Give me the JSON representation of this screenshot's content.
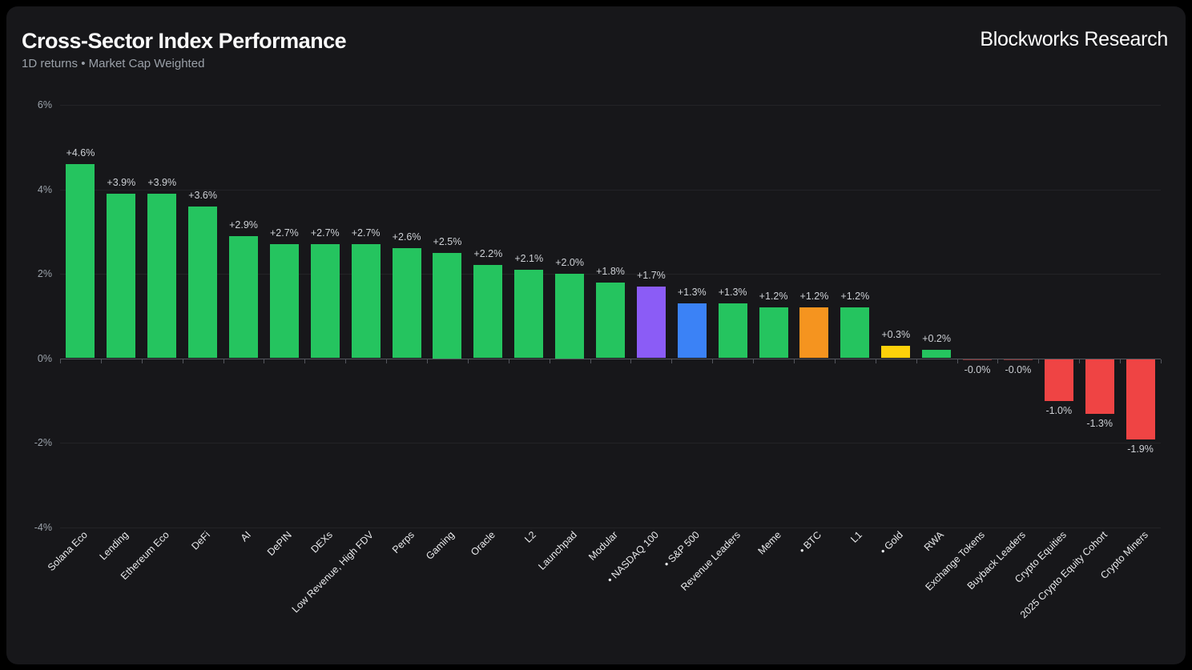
{
  "header": {
    "title": "Cross-Sector Index Performance",
    "subtitle": "1D returns • Market Cap Weighted",
    "brand": "Blockworks Research"
  },
  "chart_data": {
    "type": "bar",
    "title": "Cross-Sector Index Performance",
    "subtitle": "1D returns • Market Cap Weighted",
    "xlabel": "",
    "ylabel": "",
    "ylim": [
      -4,
      6
    ],
    "grid": "horizontal",
    "legend": "none",
    "yticks": [
      6,
      4,
      2,
      0,
      -2,
      -4
    ],
    "ytick_labels": [
      "6%",
      "4%",
      "2%",
      "0%",
      "-2%",
      "-4%"
    ],
    "categories": [
      "Solana Eco",
      "Lending",
      "Ethereum Eco",
      "DeFi",
      "AI",
      "DePIN",
      "DEXs",
      "Low Revenue, High FDV",
      "Perps",
      "Gaming",
      "Oracle",
      "L2",
      "Launchpad",
      "Modular",
      "• NASDAQ 100",
      "• S&P 500",
      "Revenue Leaders",
      "Meme",
      "• BTC",
      "L1",
      "• Gold",
      "RWA",
      "Exchange Tokens",
      "Buyback Leaders",
      "Crypto Equities",
      "2025 Crypto Equity Cohort",
      "Crypto Miners"
    ],
    "values": [
      4.6,
      3.9,
      3.9,
      3.6,
      2.9,
      2.7,
      2.7,
      2.7,
      2.6,
      2.5,
      2.2,
      2.1,
      2.0,
      1.8,
      1.7,
      1.3,
      1.3,
      1.2,
      1.2,
      1.2,
      0.3,
      0.2,
      -0.0,
      -0.0,
      -1.0,
      -1.3,
      -1.9
    ],
    "value_labels": [
      "+4.6%",
      "+3.9%",
      "+3.9%",
      "+3.6%",
      "+2.9%",
      "+2.7%",
      "+2.7%",
      "+2.7%",
      "+2.6%",
      "+2.5%",
      "+2.2%",
      "+2.1%",
      "+2.0%",
      "+1.8%",
      "+1.7%",
      "+1.3%",
      "+1.3%",
      "+1.2%",
      "+1.2%",
      "+1.2%",
      "+0.3%",
      "+0.2%",
      "-0.0%",
      "-0.0%",
      "-1.0%",
      "-1.3%",
      "-1.9%"
    ],
    "colors": [
      "#25c45f",
      "#25c45f",
      "#25c45f",
      "#25c45f",
      "#25c45f",
      "#25c45f",
      "#25c45f",
      "#25c45f",
      "#25c45f",
      "#25c45f",
      "#25c45f",
      "#25c45f",
      "#25c45f",
      "#25c45f",
      "#8b5cf6",
      "#3b82f6",
      "#25c45f",
      "#25c45f",
      "#f5941f",
      "#25c45f",
      "#fdd10a",
      "#25c45f",
      "#ef4444",
      "#ef4444",
      "#ef4444",
      "#ef4444",
      "#ef4444"
    ],
    "palette": {
      "positive": "#25c45f",
      "negative": "#ef4444",
      "nasdaq": "#8b5cf6",
      "sp500": "#3b82f6",
      "btc": "#f5941f",
      "gold": "#fdd10a"
    }
  }
}
